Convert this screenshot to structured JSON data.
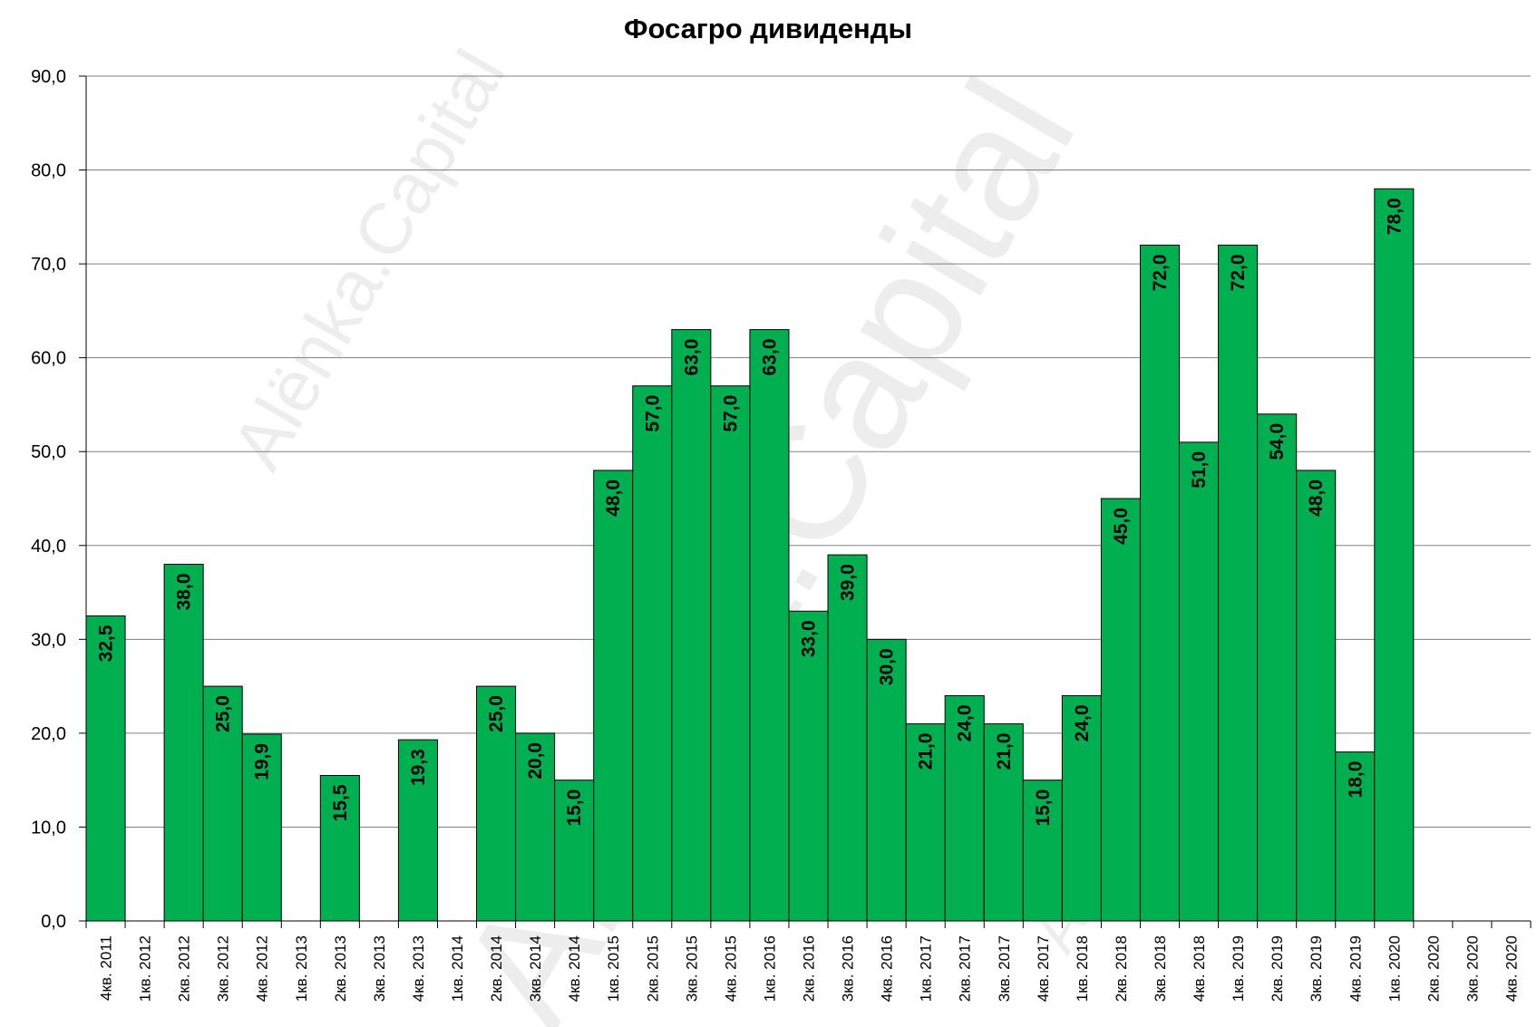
{
  "chart_data": {
    "type": "bar",
    "title": "Фосагро дивиденды",
    "xlabel": "",
    "ylabel": "",
    "ylim": [
      0,
      90
    ],
    "yticks": [
      "0,0",
      "10,0",
      "20,0",
      "30,0",
      "40,0",
      "50,0",
      "60,0",
      "70,0",
      "80,0",
      "90,0"
    ],
    "grid": true,
    "bar_color": "#00b050",
    "categories": [
      "4кв. 2011",
      "1кв. 2012",
      "2кв. 2012",
      "3кв. 2012",
      "4кв. 2012",
      "1кв. 2013",
      "2кв. 2013",
      "3кв. 2013",
      "4кв. 2013",
      "1кв. 2014",
      "2кв. 2014",
      "3кв. 2014",
      "4кв. 2014",
      "1кв. 2015",
      "2кв. 2015",
      "3кв. 2015",
      "4кв. 2015",
      "1кв. 2016",
      "2кв. 2016",
      "3кв. 2016",
      "4кв. 2016",
      "1кв. 2017",
      "2кв. 2017",
      "3кв. 2017",
      "4кв. 2017",
      "1кв. 2018",
      "2кв. 2018",
      "3кв. 2018",
      "4кв. 2018",
      "1кв. 2019",
      "2кв. 2019",
      "3кв. 2019",
      "4кв. 2019",
      "1кв. 2020",
      "2кв. 2020",
      "3кв. 2020",
      "4кв. 2020"
    ],
    "values": [
      32.5,
      null,
      38.0,
      25.0,
      19.9,
      null,
      15.5,
      null,
      19.3,
      null,
      25.0,
      20.0,
      15.0,
      48.0,
      57.0,
      63.0,
      57.0,
      63.0,
      33.0,
      39.0,
      30.0,
      21.0,
      24.0,
      21.0,
      15.0,
      24.0,
      45.0,
      72.0,
      51.0,
      72.0,
      54.0,
      48.0,
      18.0,
      78.0,
      null,
      null,
      null
    ],
    "data_labels": [
      "32,5",
      "",
      "38,0",
      "25,0",
      "19,9",
      "",
      "15,5",
      "",
      "19,3",
      "",
      "25,0",
      "20,0",
      "15,0",
      "48,0",
      "57,0",
      "63,0",
      "57,0",
      "63,0",
      "33,0",
      "39,0",
      "30,0",
      "21,0",
      "24,0",
      "21,0",
      "15,0",
      "24,0",
      "45,0",
      "72,0",
      "51,0",
      "72,0",
      "54,0",
      "48,0",
      "18,0",
      "78,0",
      "",
      "",
      ""
    ]
  },
  "watermark": {
    "text": "Alënka.Capital"
  }
}
